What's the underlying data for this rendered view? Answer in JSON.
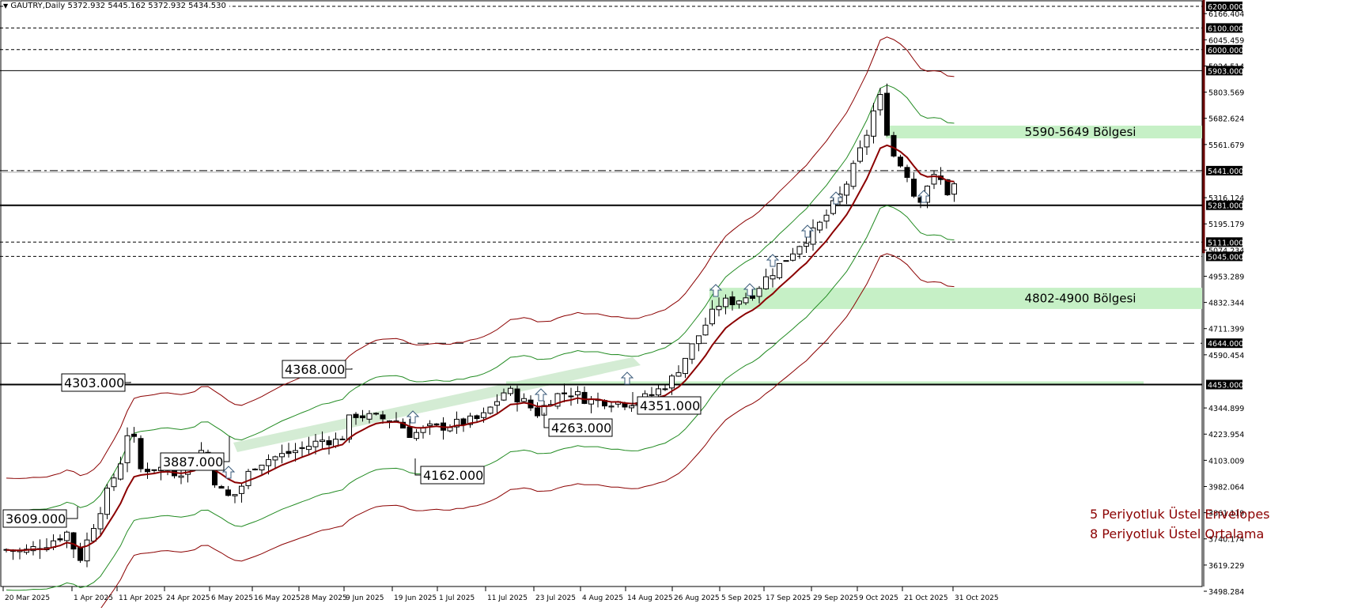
{
  "header": {
    "symbol_line": "GAUTRY,Daily",
    "ohlc": "5372.932 5445.162 5372.932 5434.530",
    "collapse_glyph": "▼"
  },
  "legend": {
    "line1": "5 Periyotluk Üstel Envelopes",
    "line2": "8 Periyotluk Üstel Ortalama",
    "color": "#8b0000"
  },
  "zones": [
    {
      "label": "5590-5649 Bölgesi",
      "low": 5590,
      "high": 5649,
      "color": "#c6f0c6"
    },
    {
      "label": "4802-4900 Bölgesi",
      "low": 4802,
      "high": 4900,
      "color": "#c6f0c6"
    }
  ],
  "colors": {
    "ema": "#8b0000",
    "envelope_outer": "#8b0000",
    "envelope_inner": "#228b22",
    "trend_channel": "#d4ecd4",
    "bull_body": "#ffffff",
    "bear_body": "#000000"
  },
  "chart_data": {
    "type": "candlestick",
    "title": "GAUTRY, Daily",
    "xlabel": "",
    "ylabel": "",
    "ylim": [
      3498.284,
      6200.0
    ],
    "grid": false,
    "x_ticks": [
      "20 Mar 2025",
      "1 Apr 2025",
      "11 Apr 2025",
      "24 Apr 2025",
      "6 May 2025",
      "16 May 2025",
      "28 May 2025",
      "9 Jun 2025",
      "19 Jun 2025",
      "1 Jul 2025",
      "11 Jul 2025",
      "23 Jul 2025",
      "4 Aug 2025",
      "14 Aug 2025",
      "26 Aug 2025",
      "5 Sep 2025",
      "17 Sep 2025",
      "29 Sep 2025",
      "9 Oct 2025",
      "21 Oct 2025",
      "31 Oct 2025"
    ],
    "y_ticks": [
      "6166.404",
      "6045.459",
      "5924.514",
      "5803.569",
      "5682.624",
      "5561.679",
      "5316.124",
      "5195.179",
      "5074.234",
      "4953.289",
      "4832.344",
      "4711.399",
      "4590.454",
      "4344.899",
      "4223.954",
      "4103.009",
      "3982.064",
      "3861.119",
      "3740.174",
      "3619.229",
      "3498.284"
    ],
    "horizontal_levels": [
      {
        "value": 6200.0,
        "style": "dotted",
        "label": "6200.000"
      },
      {
        "value": 6100.0,
        "style": "dotted",
        "label": "6100.000"
      },
      {
        "value": 6000.0,
        "style": "dotted",
        "label": "6000.000"
      },
      {
        "value": 5903.0,
        "style": "solid-thin",
        "label": "5903.000"
      },
      {
        "value": 5441.0,
        "style": "dash-dot",
        "label": "5441.000"
      },
      {
        "value": 5281.0,
        "style": "solid-thick",
        "label": "5281.000"
      },
      {
        "value": 5111.0,
        "style": "dotted",
        "label": "5111.000"
      },
      {
        "value": 5045.0,
        "style": "dotted",
        "label": "5045.000"
      },
      {
        "value": 4644.0,
        "style": "dashed",
        "label": "4644.000"
      },
      {
        "value": 4453.0,
        "style": "solid-thick",
        "label": "4453.000"
      }
    ],
    "annotations": [
      {
        "text": "3609.000",
        "price": 3609
      },
      {
        "text": "4303.000",
        "price": 4303
      },
      {
        "text": "3887.000",
        "price": 3887
      },
      {
        "text": "4368.000",
        "price": 4368
      },
      {
        "text": "4162.000",
        "price": 4162
      },
      {
        "text": "4263.000",
        "price": 4263
      },
      {
        "text": "4351.000",
        "price": 4351
      },
      {
        "text": "5590-5649 Bölgesi",
        "price": 5620
      },
      {
        "text": "4802-4900 Bölgesi",
        "price": 4851
      }
    ],
    "series": [
      {
        "name": "8 Periyotluk Üstel Ortalama",
        "type": "line"
      },
      {
        "name": "5 Periyotluk Üstel Envelopes",
        "type": "band"
      }
    ],
    "last_ohlc": {
      "open": 5372.932,
      "high": 5445.162,
      "low": 5372.932,
      "close": 5434.53
    }
  }
}
